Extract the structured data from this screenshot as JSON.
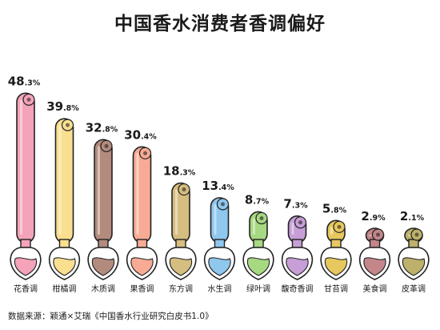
{
  "title": "中国香水消费者香调偏好",
  "source": "数据来源：颖通×艾瑞《中国香水行业研究白皮书1.0》",
  "unit": "%",
  "chart_data": {
    "type": "bar",
    "title": "中国香水消费者香调偏好",
    "categories": [
      "花香调",
      "柑橘调",
      "木质调",
      "果香调",
      "东方调",
      "水生调",
      "绿叶调",
      "馥奇香调",
      "甘苔调",
      "美食调",
      "皮革调"
    ],
    "values": [
      48.3,
      39.8,
      32.8,
      30.4,
      18.3,
      13.4,
      8.7,
      7.3,
      5.8,
      2.9,
      2.1
    ],
    "value_labels": [
      {
        "int": "48",
        "dec": ".3%"
      },
      {
        "int": "39",
        "dec": ".8%"
      },
      {
        "int": "32",
        "dec": ".8%"
      },
      {
        "int": "30",
        "dec": ".4%"
      },
      {
        "int": "18",
        "dec": ".3%"
      },
      {
        "int": "13",
        "dec": ".4%"
      },
      {
        "int": "8",
        "dec": ".7%"
      },
      {
        "int": "7",
        "dec": ".3%"
      },
      {
        "int": "5",
        "dec": ".8%"
      },
      {
        "int": "2",
        "dec": ".9%"
      },
      {
        "int": "2",
        "dec": ".1%"
      }
    ],
    "colors": [
      "#f4a3b8",
      "#f9df8f",
      "#b38b7d",
      "#f7ab94",
      "#d6bd80",
      "#8fc7ef",
      "#a7d882",
      "#c79ed6",
      "#e6c85e",
      "#c4868a",
      "#bdb16b"
    ],
    "icons": [
      "flower-icon",
      "lemon-icon",
      "wood-icon",
      "peach-icon",
      "star-anise-icon",
      "wave-icon",
      "leaf-icon",
      "lavender-icon",
      "moss-icon",
      "chocolate-icon",
      "leather-icon"
    ],
    "ylim": [
      0,
      50
    ],
    "grid": false,
    "legend": "none"
  }
}
